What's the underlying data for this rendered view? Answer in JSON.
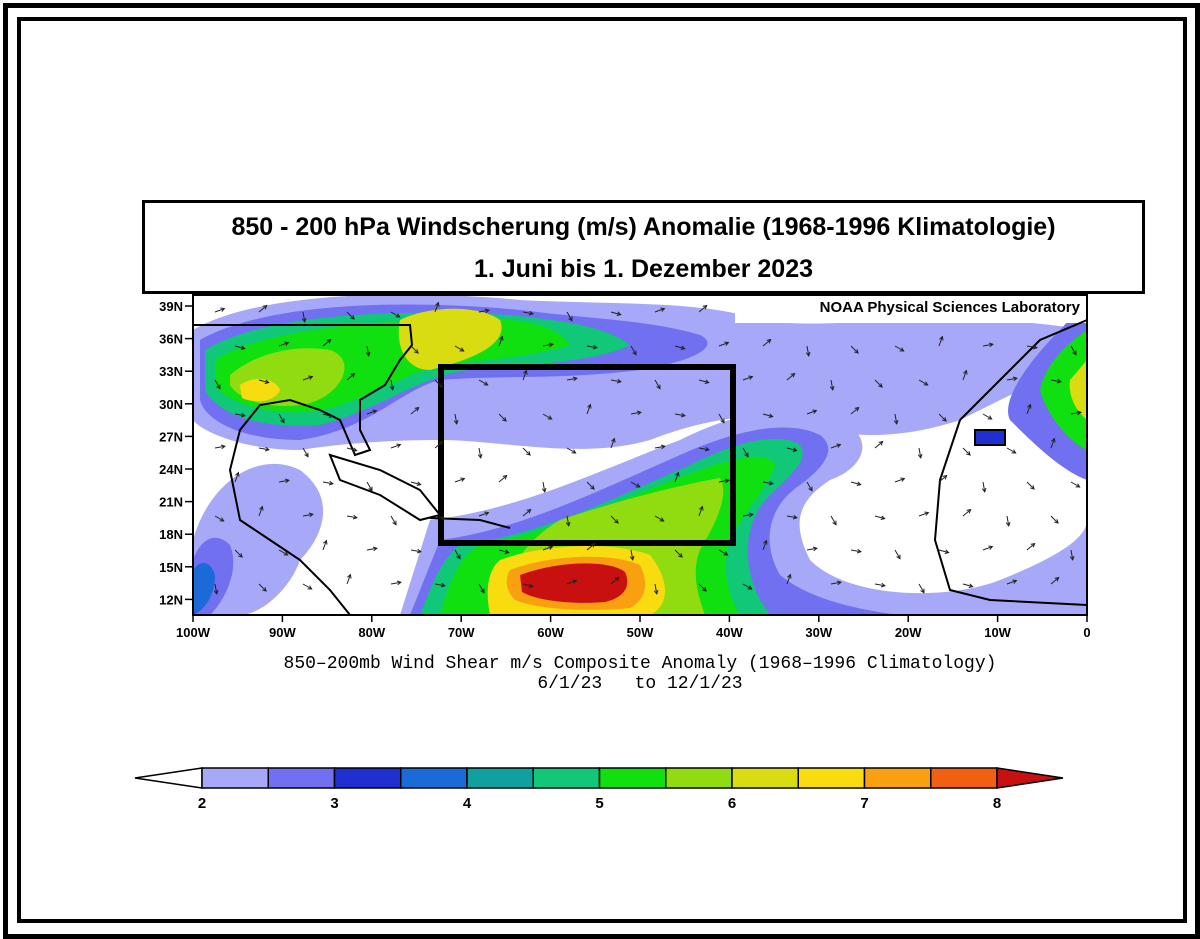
{
  "title": {
    "line1": "850 - 200 hPa Windscherung (m/s) Anomalie (1968-1996 Klimatologie)",
    "line2": "1. Juni bis 1. Dezember 2023"
  },
  "credit": "NOAA Physical Sciences Laboratory",
  "map": {
    "caption_line1": "850–200mb Wind Shear m/s Composite Anomaly (1968–1996 Climatology)",
    "caption_line2": "6/1/23   to 12/1/23",
    "lat_labels": [
      "39N",
      "36N",
      "33N",
      "30N",
      "27N",
      "24N",
      "21N",
      "18N",
      "15N",
      "12N"
    ],
    "lon_labels": [
      "100W",
      "90W",
      "80W",
      "70W",
      "60W",
      "50W",
      "40W",
      "30W",
      "20W",
      "10W",
      "0"
    ],
    "extent": {
      "lon": [
        -100,
        0
      ],
      "lat": [
        10,
        40
      ]
    },
    "highlight_box": {
      "lon": [
        -73,
        -40
      ],
      "lat": [
        17,
        33
      ]
    }
  },
  "colorbar": {
    "tick_labels": [
      "2",
      "3",
      "4",
      "5",
      "6",
      "7",
      "8"
    ],
    "colors": [
      "#ffffff",
      "#a8a8f8",
      "#7070f0",
      "#2030d0",
      "#1c6ad8",
      "#10a0a0",
      "#10c878",
      "#10e010",
      "#90dc10",
      "#d8dc10",
      "#f8dc10",
      "#f8a010",
      "#f06010",
      "#c81010"
    ]
  }
}
